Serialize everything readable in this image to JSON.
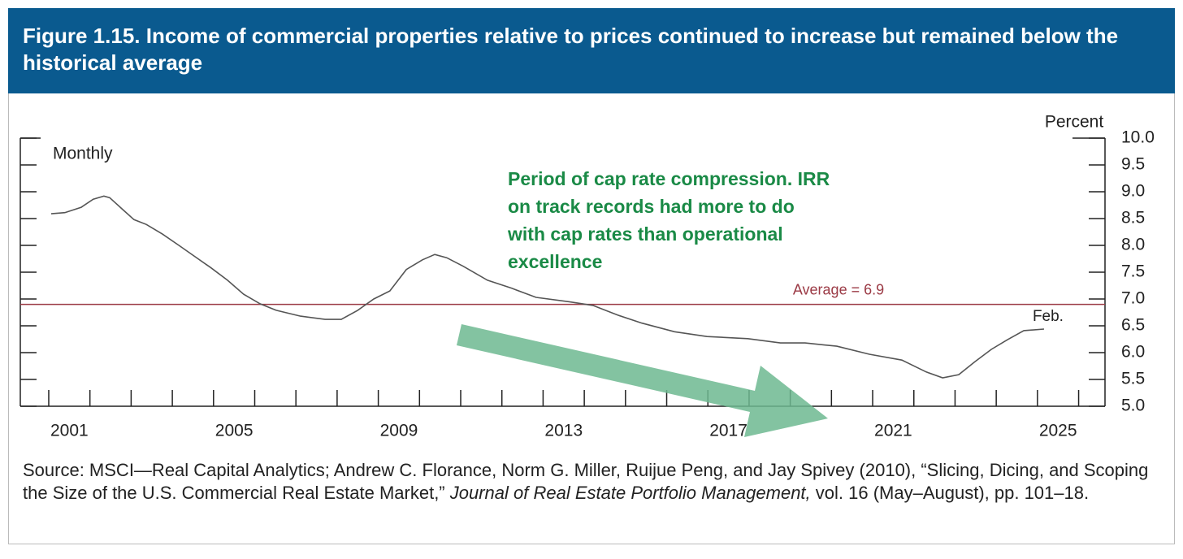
{
  "chart_data": {
    "type": "line",
    "title": "Figure 1.15. Income of commercial properties relative to prices continued to increase but remained below the historical average",
    "y_axis_label": "Percent",
    "frequency_note": "Monthly",
    "end_label": "Feb.",
    "annotation_lines": [
      "Period of cap rate compression. IRR",
      "on track records had more to do",
      "with cap rates than operational",
      "excellence"
    ],
    "reference_line": {
      "value": 6.9,
      "label": "Average = 6.9",
      "color": "#9b3a45"
    },
    "x": [
      2001.06,
      2001.39,
      2001.79,
      2002.08,
      2002.34,
      2002.48,
      2002.78,
      2003.07,
      2003.37,
      2003.76,
      2004.16,
      2004.55,
      2004.94,
      2005.34,
      2005.73,
      2006.13,
      2006.52,
      2007.11,
      2007.71,
      2008.1,
      2008.5,
      2008.89,
      2009.28,
      2009.68,
      2010.07,
      2010.37,
      2010.66,
      2011.06,
      2011.65,
      2012.24,
      2012.83,
      2013.62,
      2014.21,
      2014.81,
      2015.4,
      2016.19,
      2016.98,
      2017.97,
      2018.76,
      2019.36,
      2020.13,
      2020.92,
      2021.71,
      2022.3,
      2022.7,
      2023.09,
      2023.48,
      2023.88,
      2024.27,
      2024.67,
      2025.16
    ],
    "values": [
      8.59,
      8.61,
      8.71,
      8.86,
      8.92,
      8.89,
      8.68,
      8.48,
      8.39,
      8.21,
      8.0,
      7.79,
      7.58,
      7.35,
      7.09,
      6.91,
      6.79,
      6.68,
      6.62,
      6.62,
      6.79,
      7.0,
      7.15,
      7.55,
      7.73,
      7.83,
      7.77,
      7.61,
      7.35,
      7.2,
      7.03,
      6.95,
      6.88,
      6.7,
      6.55,
      6.39,
      6.3,
      6.26,
      6.18,
      6.18,
      6.12,
      5.97,
      5.86,
      5.64,
      5.53,
      5.59,
      5.83,
      6.06,
      6.24,
      6.41,
      6.44
    ],
    "color": "#555555",
    "xlim": [
      2000.31,
      2026.64
    ],
    "xticks": [
      {
        "value": 2001.5,
        "label": "2001"
      },
      {
        "value": 2005.5,
        "label": "2005"
      },
      {
        "value": 2009.5,
        "label": "2009"
      },
      {
        "value": 2013.5,
        "label": "2013"
      },
      {
        "value": 2017.5,
        "label": "2017"
      },
      {
        "value": 2021.5,
        "label": "2021"
      },
      {
        "value": 2025.5,
        "label": "2025"
      }
    ],
    "xminorticks": [
      2001,
      2002,
      2003,
      2004,
      2005,
      2006,
      2007,
      2008,
      2009,
      2010,
      2011,
      2012,
      2013,
      2014,
      2015,
      2016,
      2017,
      2018,
      2019,
      2020,
      2021,
      2022,
      2023,
      2024,
      2025,
      2026
    ],
    "ylim": [
      5,
      10
    ],
    "yticks": [
      {
        "value": 5,
        "label": "5.0"
      },
      5.5,
      {
        "value": 6,
        "label": "6.0"
      },
      6.5,
      {
        "value": 7,
        "label": "7.0"
      },
      7.5,
      {
        "value": 8,
        "label": "8.0"
      },
      8.5,
      {
        "value": 9,
        "label": "9.0"
      },
      9.5,
      {
        "value": 10,
        "label": "10.0"
      }
    ],
    "source": [
      "Source: MSCI—Real Capital Analytics; Andrew C. Florance, Norm G. Miller, Ruijue Peng, and Jay Spivey (2010), “Slicing, Dicing, and Scoping the Size of the U.S. Commercial Real Estate Market,” ",
      "Journal of Real Estate Portfolio Management,",
      " vol. 16 (May–August), pp. 101–18."
    ]
  }
}
